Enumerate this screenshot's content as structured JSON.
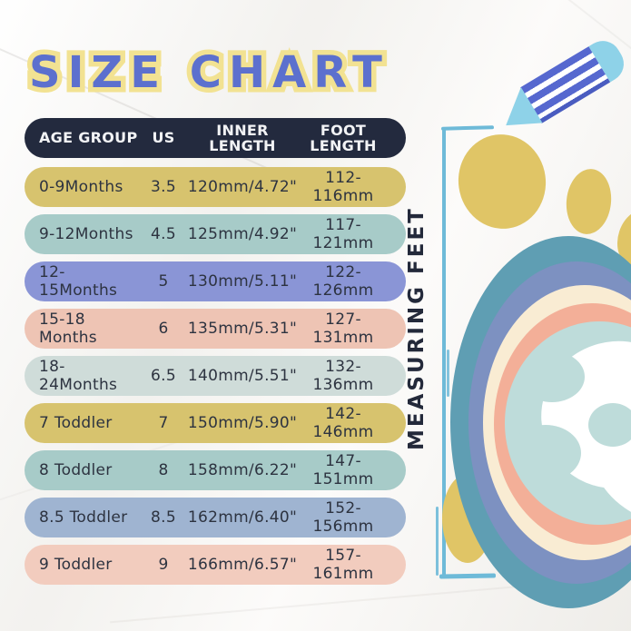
{
  "title": "SIZE CHART",
  "table": {
    "headers": [
      "AGE GROUP",
      "US",
      "INNER LENGTH",
      "FOOT LENGTH"
    ],
    "rows": [
      {
        "age_group": "0-9Months",
        "us": "3.5",
        "inner_length": "120mm/4.72\"",
        "foot_length": "112-116mm",
        "color": "#d7c36e"
      },
      {
        "age_group": "9-12Months",
        "us": "4.5",
        "inner_length": "125mm/4.92\"",
        "foot_length": "117-121mm",
        "color": "#a7cbc8"
      },
      {
        "age_group": "12-15Months",
        "us": "5",
        "inner_length": "130mm/5.11\"",
        "foot_length": "122-126mm",
        "color": "#8a95d6"
      },
      {
        "age_group": "15-18 Months",
        "us": "6",
        "inner_length": "135mm/5.31\"",
        "foot_length": "127-131mm",
        "color": "#eec4b4"
      },
      {
        "age_group": "18-24Months",
        "us": "6.5",
        "inner_length": "140mm/5.51\"",
        "foot_length": "132-136mm",
        "color": "#cfdcd9"
      },
      {
        "age_group": "7 Toddler",
        "us": "7",
        "inner_length": "150mm/5.90\"",
        "foot_length": "142-146mm",
        "color": "#d7c36e"
      },
      {
        "age_group": "8 Toddler",
        "us": "8",
        "inner_length": "158mm/6.22\"",
        "foot_length": "147-151mm",
        "color": "#a7cbc8"
      },
      {
        "age_group": "8.5 Toddler",
        "us": "8.5",
        "inner_length": "162mm/6.40\"",
        "foot_length": "152-156mm",
        "color": "#9fb4d1"
      },
      {
        "age_group": "9 Toddler",
        "us": "9",
        "inner_length": "166mm/6.57\"",
        "foot_length": "157-161mm",
        "color": "#f2ccbe"
      }
    ]
  },
  "annotation": {
    "measuring_label": "MEASURING FEET"
  },
  "chart_data": {
    "type": "table",
    "title": "SIZE CHART",
    "columns": [
      "AGE GROUP",
      "US",
      "INNER LENGTH",
      "FOOT LENGTH"
    ],
    "rows": [
      [
        "0-9Months",
        "3.5",
        "120mm/4.72\"",
        "112-116mm"
      ],
      [
        "9-12Months",
        "4.5",
        "125mm/4.92\"",
        "117-121mm"
      ],
      [
        "12-15Months",
        "5",
        "130mm/5.11\"",
        "122-126mm"
      ],
      [
        "15-18 Months",
        "6",
        "135mm/5.31\"",
        "127-131mm"
      ],
      [
        "18-24Months",
        "6.5",
        "140mm/5.51\"",
        "132-136mm"
      ],
      [
        "7 Toddler",
        "7",
        "150mm/5.90\"",
        "142-146mm"
      ],
      [
        "8 Toddler",
        "8",
        "158mm/6.22\"",
        "147-151mm"
      ],
      [
        "8.5 Toddler",
        "8.5",
        "162mm/6.40\"",
        "152-156mm"
      ],
      [
        "9 Toddler",
        "9",
        "166mm/6.57\"",
        "157-161mm"
      ]
    ]
  },
  "colors": {
    "header_bg": "#232a3e",
    "row_text": "#2d3340",
    "title_fill": "#5c70ce",
    "title_outline": "#f2e292",
    "bracket_blue": "#6ebad8",
    "pencil_body": "#5668cf",
    "pencil_accent": "#8ed2e8",
    "toe_yellow": "#e0c566",
    "foot_outer_teal": "#5f9eb3",
    "foot_slate_blue": "#7d91c1",
    "foot_cream": "#f9ecd3",
    "foot_salmon": "#f3af98",
    "foot_center_blue": "#bedcda"
  }
}
